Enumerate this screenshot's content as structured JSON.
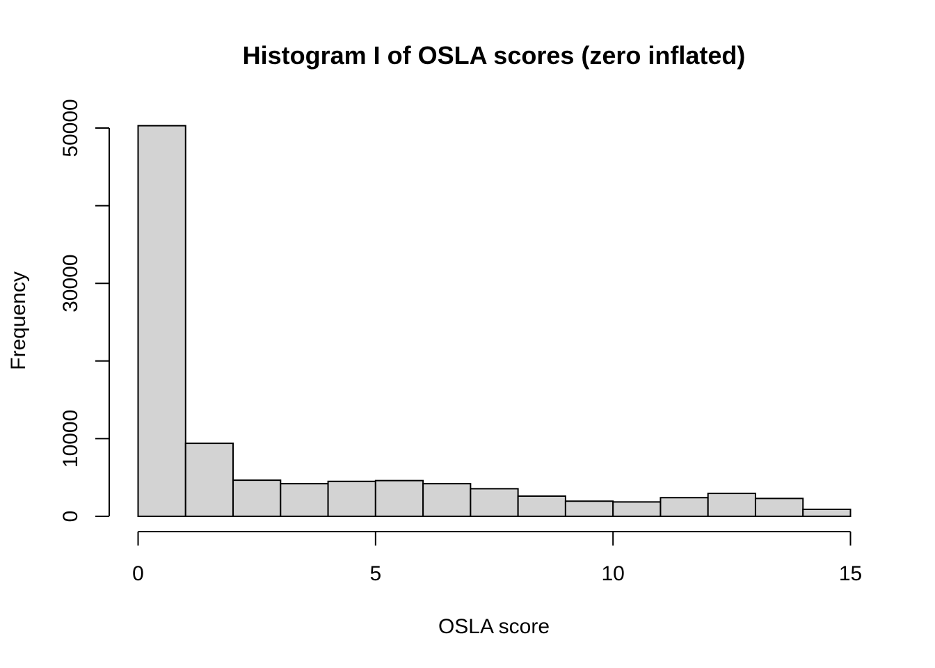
{
  "chart_data": {
    "type": "bar",
    "title": "Histogram I of OSLA scores (zero inflated)",
    "xlabel": "OSLA score",
    "ylabel": "Frequency",
    "bins": [
      {
        "from": 0,
        "to": 1,
        "count": 50300
      },
      {
        "from": 1,
        "to": 2,
        "count": 9400
      },
      {
        "from": 2,
        "to": 3,
        "count": 4650
      },
      {
        "from": 3,
        "to": 4,
        "count": 4200
      },
      {
        "from": 4,
        "to": 5,
        "count": 4500
      },
      {
        "from": 5,
        "to": 6,
        "count": 4600
      },
      {
        "from": 6,
        "to": 7,
        "count": 4200
      },
      {
        "from": 7,
        "to": 8,
        "count": 3550
      },
      {
        "from": 8,
        "to": 9,
        "count": 2600
      },
      {
        "from": 9,
        "to": 10,
        "count": 1950
      },
      {
        "from": 10,
        "to": 11,
        "count": 1850
      },
      {
        "from": 11,
        "to": 12,
        "count": 2400
      },
      {
        "from": 12,
        "to": 13,
        "count": 2950
      },
      {
        "from": 13,
        "to": 14,
        "count": 2300
      },
      {
        "from": 14,
        "to": 15,
        "count": 900
      }
    ],
    "xlim": [
      0,
      15
    ],
    "ylim": [
      0,
      50000
    ],
    "x_ticks": [
      0,
      5,
      10,
      15
    ],
    "x_tick_labels": [
      "0",
      "5",
      "10",
      "15"
    ],
    "y_ticks": [
      0,
      10000,
      20000,
      30000,
      40000,
      50000
    ],
    "y_tick_labels": [
      "0",
      "10000",
      "",
      "30000",
      "",
      "50000"
    ],
    "grid": false,
    "bar_color": "#d3d3d3",
    "edge_color": "#000000"
  }
}
